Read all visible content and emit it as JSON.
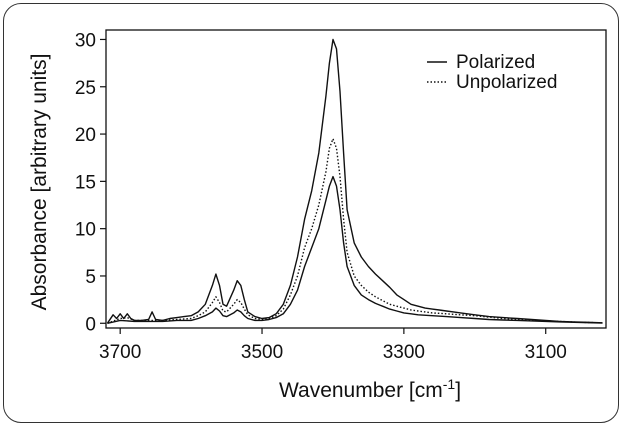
{
  "chart_data": {
    "type": "line",
    "title": "",
    "xlabel": "Wavenumber [cm",
    "xlabel_sup": "-1",
    "xlabel_end": "]",
    "ylabel": "Absorbance [arbitrary units]",
    "xlim": [
      3720,
      3015
    ],
    "x_reversed": true,
    "ylim": [
      -0.5,
      31
    ],
    "xticks": [
      3700,
      3500,
      3300,
      3100
    ],
    "yticks": [
      0,
      5,
      10,
      15,
      20,
      25,
      30
    ],
    "grid": false,
    "legend_position": "top-right",
    "legend": [
      "Polarized",
      "Unpolarized"
    ],
    "series": [
      {
        "name": "Polarized",
        "style": "solid",
        "color": "#111111",
        "x": [
          3718,
          3710,
          3705,
          3700,
          3695,
          3690,
          3685,
          3680,
          3670,
          3660,
          3655,
          3650,
          3640,
          3630,
          3620,
          3610,
          3600,
          3590,
          3580,
          3570,
          3565,
          3560,
          3555,
          3550,
          3540,
          3535,
          3530,
          3525,
          3520,
          3510,
          3500,
          3490,
          3480,
          3470,
          3460,
          3450,
          3440,
          3430,
          3420,
          3410,
          3405,
          3400,
          3395,
          3390,
          3385,
          3380,
          3370,
          3360,
          3350,
          3340,
          3330,
          3320,
          3310,
          3300,
          3290,
          3280,
          3270,
          3260,
          3250,
          3240,
          3230,
          3220,
          3200,
          3180,
          3160,
          3140,
          3120,
          3100,
          3080,
          3060,
          3040,
          3020
        ],
        "values": [
          0,
          0.9,
          0.5,
          1.0,
          0.5,
          1.0,
          0.5,
          0.3,
          0.3,
          0.4,
          1.2,
          0.4,
          0.3,
          0.5,
          0.6,
          0.7,
          0.8,
          1.2,
          2.0,
          4.0,
          5.2,
          4.0,
          2.0,
          1.8,
          3.5,
          4.5,
          4.0,
          2.5,
          1.2,
          0.7,
          0.5,
          0.6,
          1.0,
          2.0,
          4.0,
          7.0,
          11.0,
          14.0,
          18.0,
          24.0,
          27.5,
          30.0,
          29.0,
          24.5,
          18.0,
          12.0,
          8.5,
          7.0,
          6.0,
          5.2,
          4.5,
          3.8,
          3.0,
          2.5,
          2.0,
          1.8,
          1.6,
          1.5,
          1.4,
          1.3,
          1.2,
          1.1,
          0.9,
          0.7,
          0.6,
          0.5,
          0.4,
          0.3,
          0.2,
          0.15,
          0.1,
          0.05
        ]
      },
      {
        "name": "Unpolarized",
        "style": "dotted",
        "color": "#111111",
        "x": [
          3718,
          3700,
          3690,
          3680,
          3660,
          3640,
          3620,
          3600,
          3590,
          3580,
          3570,
          3565,
          3560,
          3555,
          3550,
          3540,
          3535,
          3530,
          3525,
          3520,
          3510,
          3500,
          3490,
          3480,
          3470,
          3460,
          3450,
          3440,
          3430,
          3420,
          3410,
          3405,
          3400,
          3395,
          3390,
          3385,
          3380,
          3370,
          3360,
          3350,
          3340,
          3330,
          3320,
          3310,
          3300,
          3290,
          3280,
          3260,
          3240,
          3220,
          3200,
          3180,
          3160,
          3140,
          3120,
          3100,
          3080,
          3060,
          3040,
          3020
        ],
        "values": [
          0,
          0.5,
          0.6,
          0.3,
          0.3,
          0.3,
          0.4,
          0.5,
          0.8,
          1.2,
          2.2,
          2.8,
          2.2,
          1.3,
          1.2,
          2.0,
          2.5,
          2.2,
          1.5,
          0.9,
          0.5,
          0.4,
          0.5,
          0.8,
          1.5,
          3.0,
          5.0,
          8.0,
          10.0,
          12.5,
          16.0,
          18.5,
          19.5,
          18.5,
          15.5,
          11.0,
          7.5,
          5.0,
          4.0,
          3.3,
          2.8,
          2.4,
          2.0,
          1.8,
          1.6,
          1.4,
          1.3,
          1.1,
          1.0,
          0.9,
          0.8,
          0.65,
          0.5,
          0.4,
          0.3,
          0.25,
          0.2,
          0.12,
          0.08,
          0.04
        ]
      },
      {
        "name": "",
        "style": "solid",
        "color": "#111111",
        "x": [
          3718,
          3700,
          3680,
          3660,
          3640,
          3620,
          3600,
          3590,
          3580,
          3570,
          3565,
          3560,
          3555,
          3550,
          3540,
          3535,
          3530,
          3525,
          3520,
          3510,
          3500,
          3490,
          3480,
          3470,
          3460,
          3450,
          3440,
          3430,
          3420,
          3410,
          3405,
          3400,
          3395,
          3390,
          3385,
          3380,
          3370,
          3360,
          3350,
          3340,
          3330,
          3320,
          3310,
          3300,
          3290,
          3280,
          3260,
          3240,
          3220,
          3200,
          3180,
          3160,
          3140,
          3120,
          3100,
          3080,
          3060,
          3040,
          3020
        ],
        "values": [
          0,
          0.3,
          0.2,
          0.2,
          0.2,
          0.3,
          0.3,
          0.5,
          0.8,
          1.2,
          1.6,
          1.3,
          0.8,
          0.7,
          1.1,
          1.4,
          1.2,
          0.8,
          0.5,
          0.3,
          0.3,
          0.4,
          0.6,
          1.0,
          2.0,
          3.5,
          6.0,
          8.0,
          10.0,
          13.0,
          14.5,
          15.5,
          14.5,
          12.0,
          8.5,
          6.0,
          4.0,
          3.0,
          2.5,
          2.1,
          1.8,
          1.5,
          1.3,
          1.1,
          1.0,
          0.9,
          0.8,
          0.7,
          0.6,
          0.5,
          0.4,
          0.35,
          0.3,
          0.25,
          0.2,
          0.15,
          0.1,
          0.06,
          0.03
        ]
      }
    ]
  }
}
